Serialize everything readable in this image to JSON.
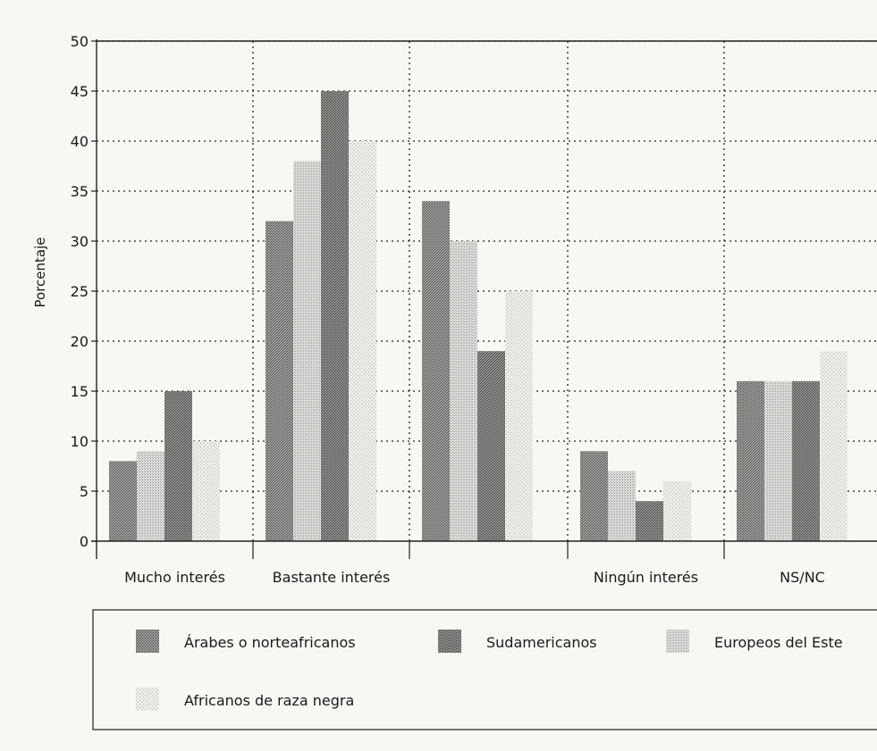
{
  "chart_data": {
    "type": "bar",
    "ylabel": "Porcentaje",
    "xlabel": "",
    "ylim": [
      0,
      50
    ],
    "yticks": [
      0,
      5,
      10,
      15,
      20,
      25,
      30,
      35,
      40,
      45,
      50
    ],
    "grid": "dotted",
    "legend_placement": "bottom",
    "categories": [
      "Mucho interés",
      "Bastante interés",
      "",
      "Ningún interés",
      "NS/NC"
    ],
    "series": [
      {
        "name": "Árabes o norteafricanos",
        "values": [
          8,
          32,
          34,
          9,
          16
        ],
        "color": "#8a8a8a"
      },
      {
        "name": "Europeos del Este",
        "values": [
          9,
          38,
          30,
          7,
          16
        ],
        "color": "#d9d9d4"
      },
      {
        "name": "Sudamericanos",
        "values": [
          15,
          45,
          19,
          4,
          16
        ],
        "color": "#7a7a7a"
      },
      {
        "name": "Africanos de raza negra",
        "values": [
          10,
          40,
          25,
          6,
          19
        ],
        "color": "#ececea"
      }
    ],
    "legend_order": [
      0,
      2,
      1,
      3
    ]
  }
}
